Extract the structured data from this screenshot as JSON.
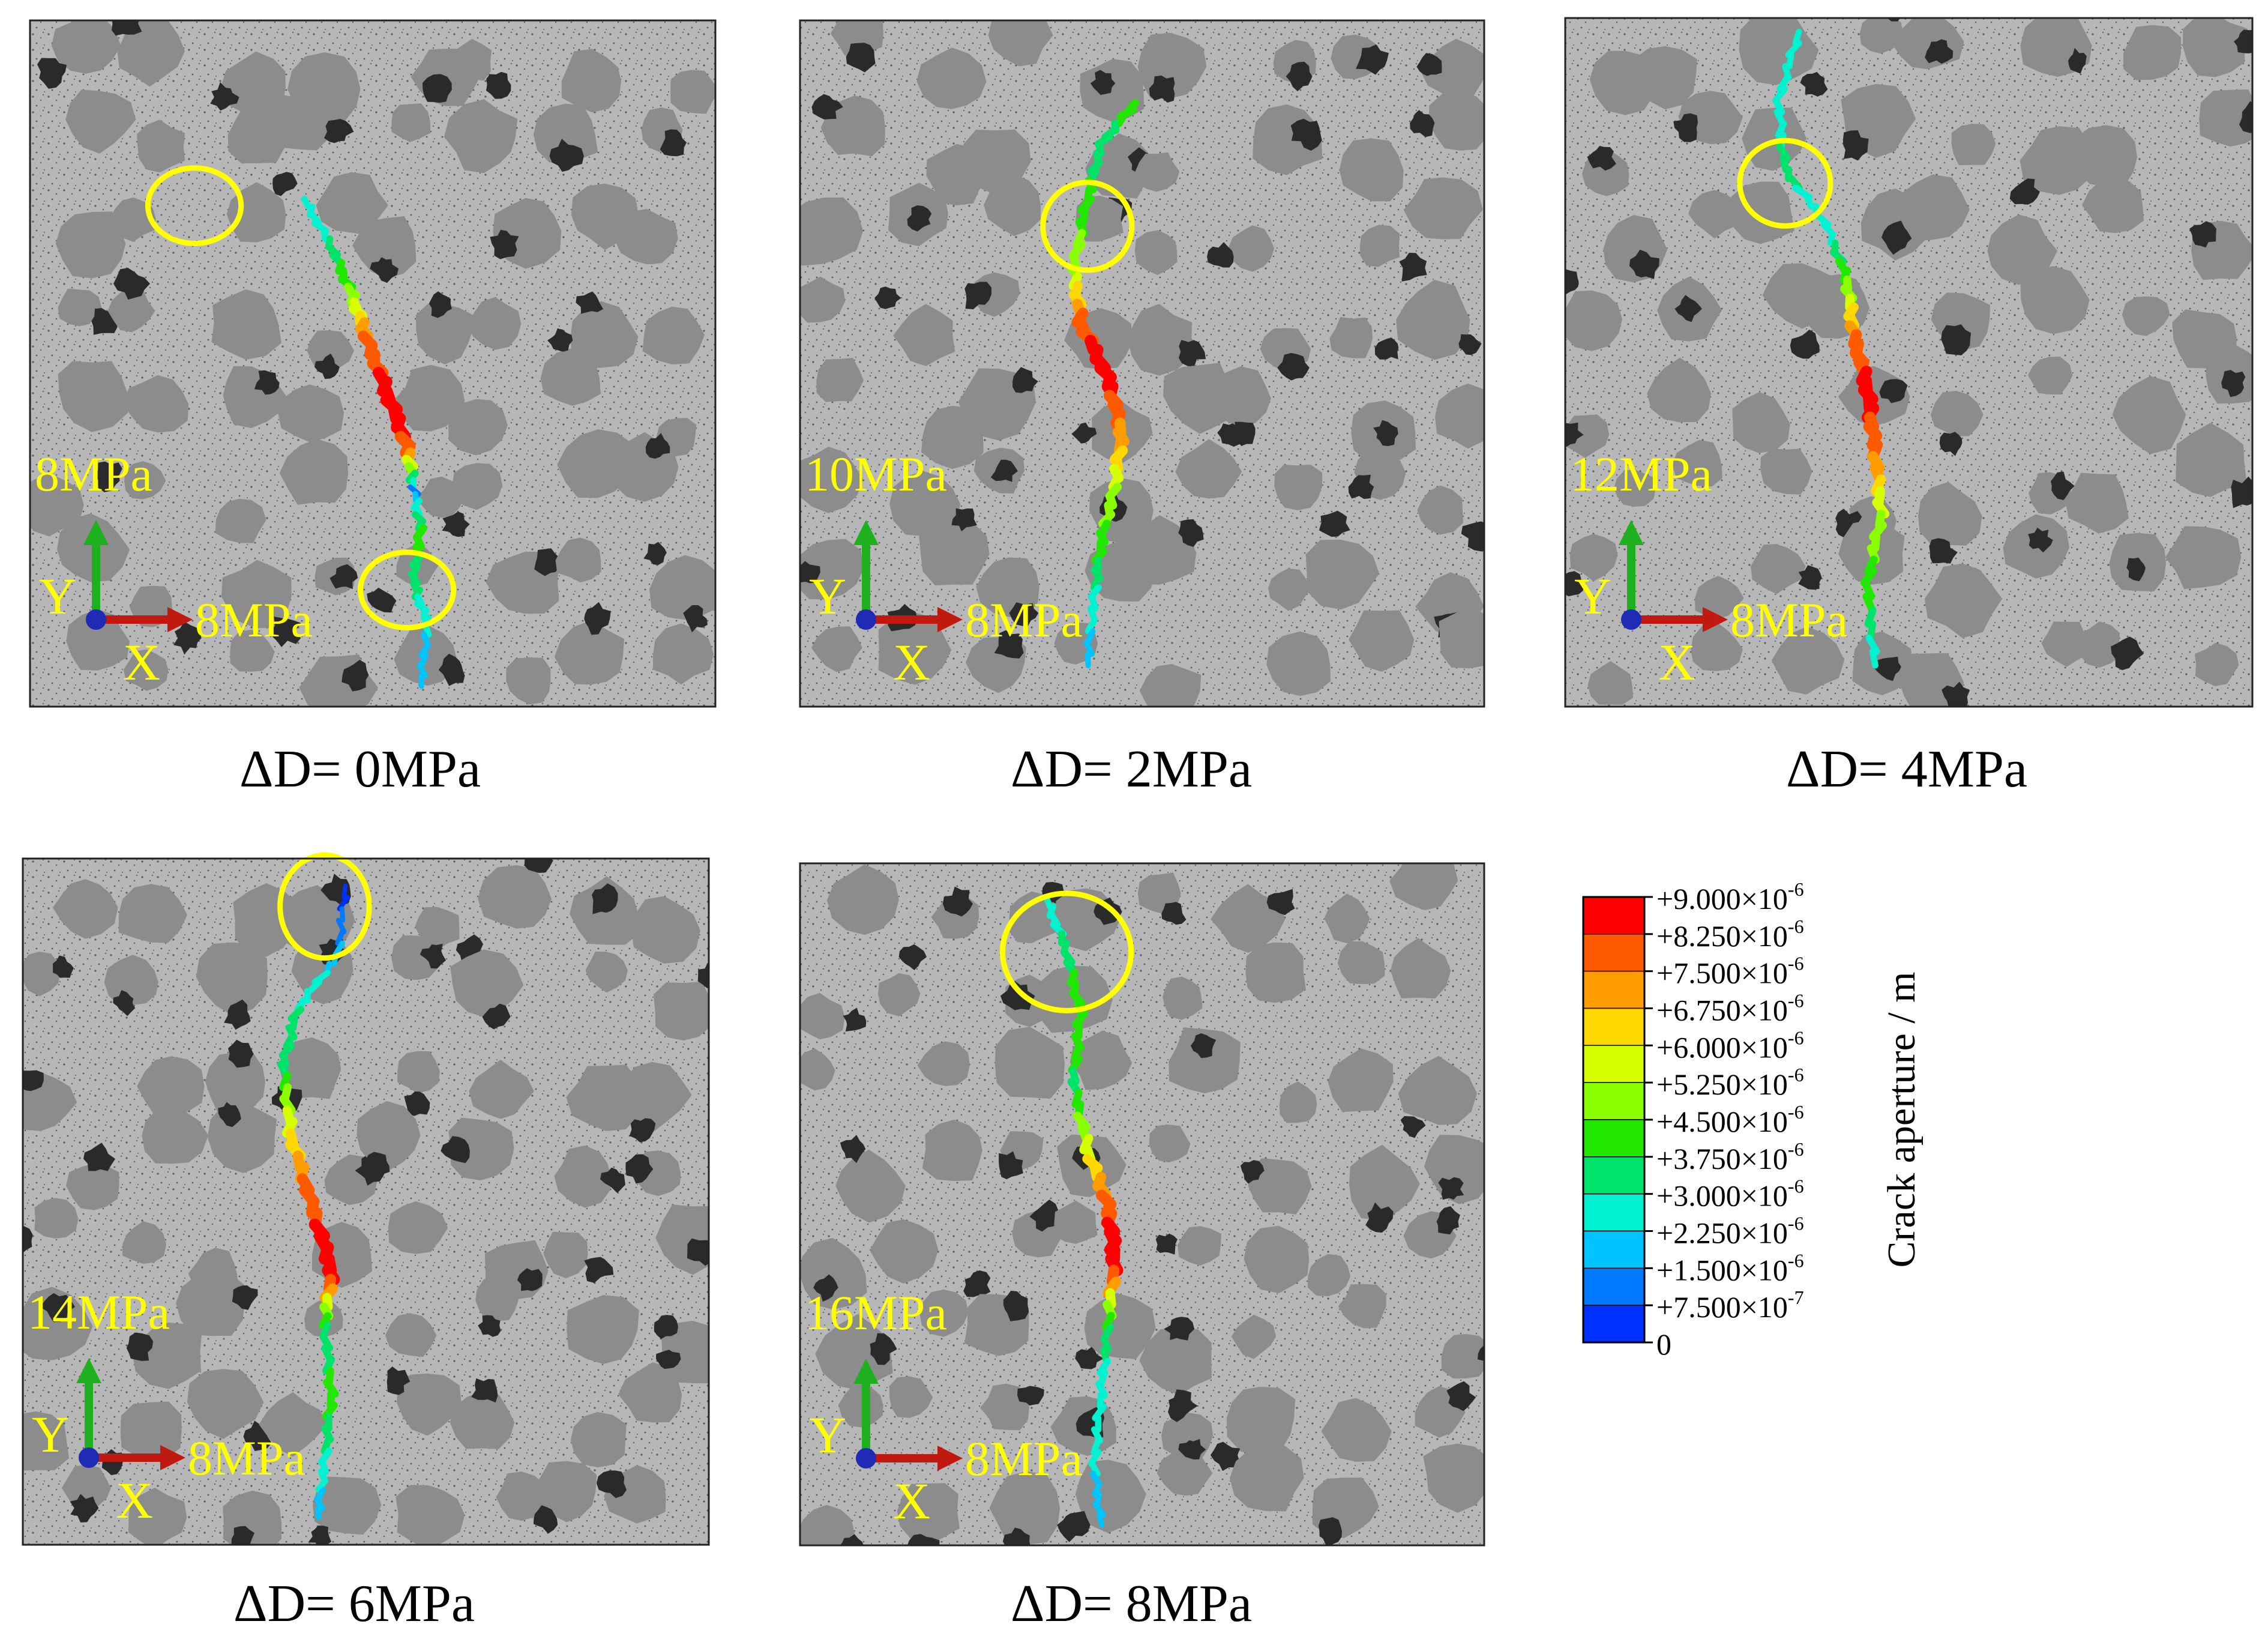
{
  "colors": {
    "matrix": "#b7b7b7",
    "aggregate_light": "#8c8c8c",
    "aggregate_dark": "#2a2a2a",
    "annotation": "#ffff00",
    "frame": "#222222",
    "axis_y": "#1fb01f",
    "axis_x": "#c0190f",
    "axis_origin": "#1f2ab5"
  },
  "panels": [
    {
      "vertical_load": "8MPa",
      "horizontal_load": "8MPa",
      "y_label": "Y",
      "x_label": "X",
      "caption": "ΔD= 0MPa"
    },
    {
      "vertical_load": "10MPa",
      "horizontal_load": "8MPa",
      "y_label": "Y",
      "x_label": "X",
      "caption": "ΔD= 2MPa"
    },
    {
      "vertical_load": "12MPa",
      "horizontal_load": "8MPa",
      "y_label": "Y",
      "x_label": "X",
      "caption": "ΔD= 4MPa"
    },
    {
      "vertical_load": "14MPa",
      "horizontal_load": "8MPa",
      "y_label": "Y",
      "x_label": "X",
      "caption": "ΔD= 6MPa"
    },
    {
      "vertical_load": "16MPa",
      "horizontal_load": "8MPa",
      "y_label": "Y",
      "x_label": "X",
      "caption": "ΔD= 8MPa"
    }
  ],
  "legend": {
    "title": "Crack aperture / m",
    "levels": [
      {
        "label": "+9.000×10",
        "exp": "-6",
        "color": "#ff0000"
      },
      {
        "label": "+8.250×10",
        "exp": "-6",
        "color": "#ff5a00"
      },
      {
        "label": "+7.500×10",
        "exp": "-6",
        "color": "#ff9c00"
      },
      {
        "label": "+6.750×10",
        "exp": "-6",
        "color": "#ffd800"
      },
      {
        "label": "+6.000×10",
        "exp": "-6",
        "color": "#d7ff00"
      },
      {
        "label": "+5.250×10",
        "exp": "-6",
        "color": "#8aff00"
      },
      {
        "label": "+4.500×10",
        "exp": "-6",
        "color": "#22e800"
      },
      {
        "label": "+3.750×10",
        "exp": "-6",
        "color": "#00e36a"
      },
      {
        "label": "+3.000×10",
        "exp": "-6",
        "color": "#00f2d0"
      },
      {
        "label": "+2.250×10",
        "exp": "-6",
        "color": "#00c4ff"
      },
      {
        "label": "+1.500×10",
        "exp": "-6",
        "color": "#0079ff"
      },
      {
        "label": "+7.500×10",
        "exp": "-7",
        "color": "#0030ff"
      },
      {
        "label": "0",
        "exp": "",
        "color": "#0000e8"
      }
    ]
  }
}
